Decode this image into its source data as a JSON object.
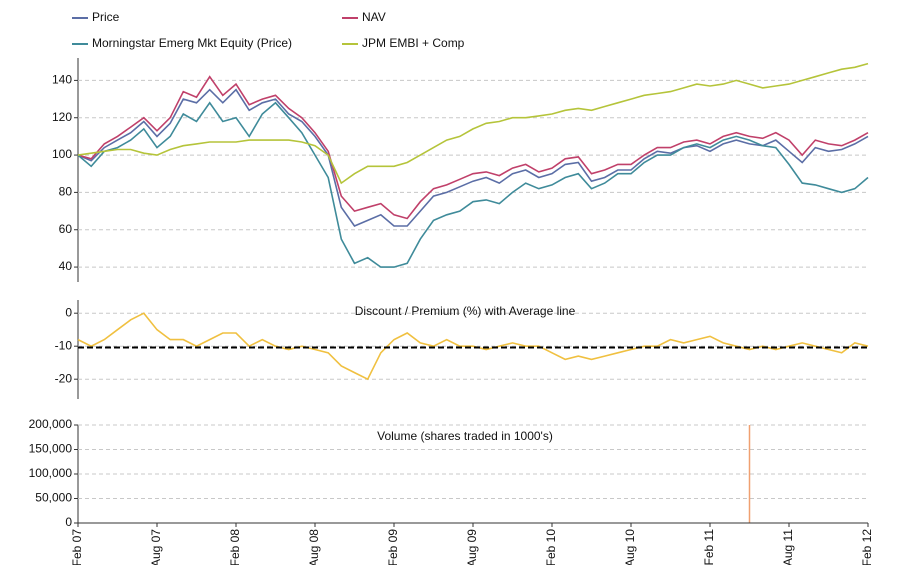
{
  "chart_data": [
    {
      "type": "line",
      "series": [
        {
          "name": "Price",
          "color": "#5b6ea6",
          "values": [
            100,
            97,
            104,
            108,
            112,
            118,
            110,
            117,
            130,
            128,
            135,
            128,
            135,
            124,
            128,
            130,
            122,
            118,
            110,
            100,
            72,
            62,
            65,
            68,
            62,
            62,
            70,
            78,
            80,
            83,
            86,
            88,
            85,
            90,
            92,
            88,
            90,
            95,
            96,
            86,
            88,
            92,
            92,
            98,
            102,
            101,
            104,
            105,
            102,
            106,
            108,
            106,
            105,
            108,
            102,
            96,
            104,
            102,
            103,
            106,
            110
          ]
        },
        {
          "name": "NAV",
          "color": "#c0406a",
          "values": [
            100,
            98,
            106,
            110,
            115,
            120,
            113,
            120,
            134,
            131,
            142,
            132,
            138,
            127,
            130,
            132,
            125,
            120,
            112,
            102,
            78,
            70,
            72,
            74,
            68,
            66,
            75,
            82,
            84,
            87,
            90,
            91,
            89,
            93,
            95,
            91,
            93,
            98,
            99,
            90,
            92,
            95,
            95,
            100,
            104,
            104,
            107,
            108,
            106,
            110,
            112,
            110,
            109,
            112,
            108,
            100,
            108,
            106,
            105,
            108,
            112
          ]
        },
        {
          "name": "Morningstar Emerg Mkt Equity (Price)",
          "color": "#3f8b9a",
          "values": [
            100,
            94,
            102,
            104,
            108,
            114,
            104,
            110,
            122,
            118,
            128,
            118,
            120,
            110,
            122,
            128,
            120,
            112,
            100,
            88,
            55,
            42,
            45,
            40,
            40,
            42,
            55,
            65,
            68,
            70,
            75,
            76,
            74,
            80,
            85,
            82,
            84,
            88,
            90,
            82,
            85,
            90,
            90,
            96,
            100,
            100,
            104,
            106,
            104,
            108,
            110,
            108,
            105,
            104,
            95,
            85,
            84,
            82,
            80,
            82,
            88
          ]
        },
        {
          "name": "JPM EMBI + Comp",
          "color": "#b5c43a",
          "values": [
            100,
            101,
            102,
            103,
            103,
            101,
            100,
            103,
            105,
            106,
            107,
            107,
            107,
            108,
            108,
            108,
            108,
            107,
            105,
            100,
            85,
            90,
            94,
            94,
            94,
            96,
            100,
            104,
            108,
            110,
            114,
            117,
            118,
            120,
            120,
            121,
            122,
            124,
            125,
            124,
            126,
            128,
            130,
            132,
            133,
            134,
            136,
            138,
            137,
            138,
            140,
            138,
            136,
            137,
            138,
            140,
            142,
            144,
            146,
            147,
            149
          ]
        }
      ],
      "ylim": [
        32,
        152
      ],
      "yticks": [
        40,
        60,
        80,
        100,
        120,
        140
      ],
      "grid": true
    },
    {
      "type": "line",
      "title": "Discount / Premium (%) with Average line",
      "series": [
        {
          "color": "#f0c040",
          "values": [
            -8,
            -10,
            -8,
            -5,
            -2,
            0,
            -5,
            -8,
            -8,
            -10,
            -8,
            -6,
            -6,
            -10,
            -8,
            -10,
            -11,
            -10,
            -11,
            -12,
            -16,
            -18,
            -20,
            -12,
            -8,
            -6,
            -9,
            -10,
            -8,
            -10,
            -10,
            -11,
            -10,
            -9,
            -10,
            -10,
            -12,
            -14,
            -13,
            -14,
            -13,
            -12,
            -11,
            -10,
            -10,
            -8,
            -9,
            -8,
            -7,
            -9,
            -10,
            -11,
            -10,
            -11,
            -10,
            -9,
            -10,
            -11,
            -12,
            -9,
            -10
          ]
        }
      ],
      "average": -10.4,
      "average_color": "#000000",
      "ylim": [
        -26,
        4
      ],
      "yticks": [
        -20,
        -10,
        0
      ],
      "grid": true
    },
    {
      "type": "bar",
      "title": "Volume  (shares traded in 1000's)",
      "color": "#f0a070",
      "x": [
        "Feb 07",
        null,
        null,
        null,
        null,
        null,
        "Aug 07",
        null,
        null,
        null,
        null,
        null,
        "Feb 08",
        null,
        null,
        null,
        null,
        null,
        "Aug 08",
        null,
        null,
        null,
        null,
        null,
        "Feb 09",
        null,
        null,
        null,
        null,
        null,
        "Aug 09",
        null,
        null,
        null,
        null,
        null,
        "Feb 10",
        null,
        null,
        null,
        null,
        null,
        "Aug 10",
        null,
        null,
        null,
        null,
        null,
        "Feb 11",
        null,
        null,
        null,
        null,
        null,
        "Aug 11",
        null,
        null,
        null,
        null,
        null,
        "Feb 12"
      ],
      "values": [
        0,
        0,
        0,
        0,
        0,
        0,
        0,
        0,
        0,
        0,
        0,
        0,
        0,
        0,
        0,
        0,
        0,
        0,
        0,
        0,
        0,
        0,
        0,
        0,
        0,
        0,
        0,
        0,
        0,
        0,
        0,
        0,
        0,
        0,
        0,
        0,
        0,
        0,
        0,
        0,
        0,
        0,
        0,
        0,
        0,
        0,
        0,
        0,
        0,
        0,
        0,
        200000,
        0,
        0,
        0,
        0,
        0,
        0,
        0,
        0,
        0
      ],
      "ylim": [
        0,
        200000
      ],
      "yticks": [
        0,
        {
          "value": 50000,
          "label": "50,000"
        },
        {
          "value": 100000,
          "label": "100,000"
        },
        {
          "value": 150000,
          "label": "150,000"
        },
        {
          "value": 200000,
          "label": "200,000"
        }
      ],
      "grid": true
    }
  ]
}
